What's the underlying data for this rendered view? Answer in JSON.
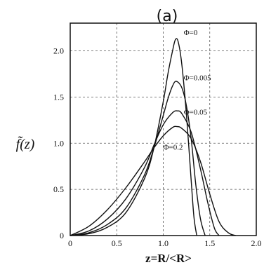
{
  "chart_data": {
    "type": "line",
    "title": "(a)",
    "xlabel": "z=R/<R>",
    "ylabel": "f̃(z)",
    "xlim": [
      0,
      2.0
    ],
    "ylim": [
      0,
      2.3
    ],
    "grid": true,
    "x_ticks": [
      "0",
      "0.5",
      "1.0",
      "1.5",
      "2.0"
    ],
    "y_ticks": [
      "0",
      "0.5",
      "1.0",
      "1.5",
      "2.0"
    ],
    "series": [
      {
        "name": "Φ=0",
        "label_at": [
          1.22,
          2.17
        ],
        "x": [
          0,
          0.2,
          0.4,
          0.6,
          0.8,
          0.9,
          1.0,
          1.05,
          1.1,
          1.13,
          1.16,
          1.2,
          1.25,
          1.3,
          1.33,
          1.36
        ],
        "y": [
          0,
          0.02,
          0.09,
          0.25,
          0.62,
          0.95,
          1.45,
          1.75,
          2.0,
          2.12,
          2.1,
          1.85,
          1.3,
          0.6,
          0.2,
          0
        ]
      },
      {
        "name": "Φ=0.005",
        "label_at": [
          1.22,
          1.68
        ],
        "x": [
          0,
          0.2,
          0.4,
          0.6,
          0.8,
          0.9,
          1.0,
          1.05,
          1.1,
          1.14,
          1.2,
          1.25,
          1.3,
          1.35,
          1.4,
          1.45
        ],
        "y": [
          0,
          0.03,
          0.12,
          0.3,
          0.66,
          0.95,
          1.3,
          1.48,
          1.62,
          1.67,
          1.6,
          1.4,
          1.05,
          0.55,
          0.18,
          0
        ]
      },
      {
        "name": "Φ=0.05",
        "label_at": [
          1.22,
          1.31
        ],
        "x": [
          0,
          0.2,
          0.4,
          0.6,
          0.8,
          0.9,
          1.0,
          1.1,
          1.15,
          1.2,
          1.3,
          1.4,
          1.48,
          1.55,
          1.6
        ],
        "y": [
          0,
          0.05,
          0.18,
          0.4,
          0.74,
          0.98,
          1.2,
          1.33,
          1.35,
          1.32,
          1.12,
          0.72,
          0.35,
          0.08,
          0
        ]
      },
      {
        "name": "Φ=0.2",
        "label_at": [
          1.0,
          0.93
        ],
        "x": [
          0,
          0.2,
          0.4,
          0.6,
          0.8,
          0.9,
          1.0,
          1.1,
          1.15,
          1.2,
          1.3,
          1.4,
          1.5,
          1.6,
          1.7,
          1.78
        ],
        "y": [
          0,
          0.1,
          0.28,
          0.52,
          0.8,
          0.95,
          1.08,
          1.17,
          1.18,
          1.16,
          1.05,
          0.8,
          0.45,
          0.15,
          0.03,
          0
        ]
      }
    ]
  }
}
